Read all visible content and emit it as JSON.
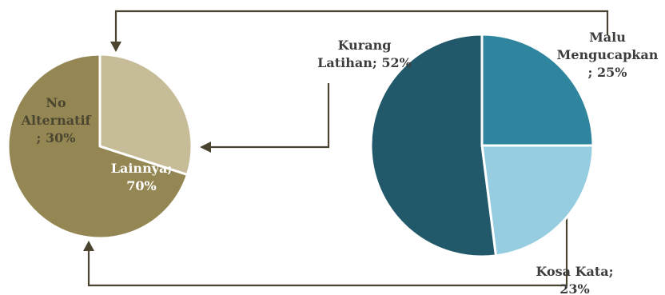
{
  "chart_data": [
    {
      "type": "pie",
      "categories": [
        "No Alternatif",
        "Lainnya"
      ],
      "values": [
        30,
        70
      ],
      "labels": [
        [
          "No",
          "Alternatif",
          "; 30%"
        ],
        [
          "Lainnya;",
          "70%"
        ]
      ],
      "colors": [
        "#c6bc98",
        "#958753"
      ],
      "label_colors": [
        "#4a4630",
        "#ffffff"
      ]
    },
    {
      "type": "pie",
      "categories": [
        "Malu Mengucapkan",
        "Kosa Kata",
        "Kurang Latihan"
      ],
      "values": [
        25,
        23,
        52
      ],
      "labels": [
        [
          "Malu",
          "Mengucapkan",
          "; 25%"
        ],
        [
          "Kosa Kata;",
          "23%"
        ],
        [
          "Kurang",
          "Latihan; 52%"
        ]
      ],
      "colors": [
        "#2f859e",
        "#97cde0",
        "#22596a"
      ],
      "label_colors": [
        "#3d3d3d",
        "#3d3d3d",
        "#3d3d3d"
      ]
    }
  ]
}
